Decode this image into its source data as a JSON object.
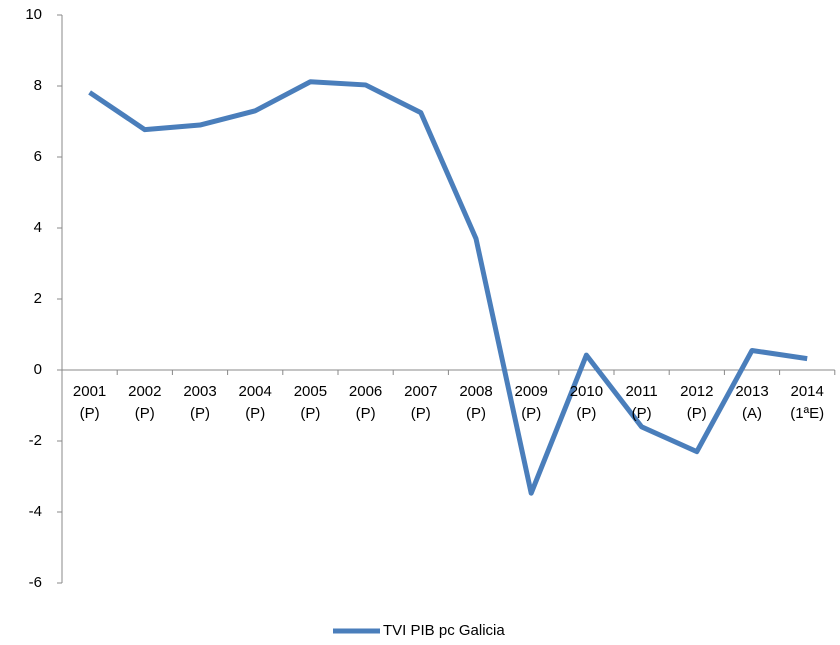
{
  "chart_data": {
    "type": "line",
    "categories": [
      "2001\n(P)",
      "2002\n(P)",
      "2003\n(P)",
      "2004\n(P)",
      "2005\n(P)",
      "2006\n(P)",
      "2007\n(P)",
      "2008\n(P)",
      "2009\n(P)",
      "2010\n(P)",
      "2011\n(P)",
      "2012\n(P)",
      "2013\n(A)",
      "2014\n(1ªE)"
    ],
    "series": [
      {
        "name": "TVI PIB pc Galicia",
        "color": "#4a7ebb",
        "values": [
          7.82,
          6.77,
          6.9,
          7.3,
          8.12,
          8.03,
          7.25,
          3.7,
          -3.47,
          0.42,
          -1.6,
          -2.3,
          0.55,
          0.32
        ]
      }
    ],
    "ylim": [
      -6,
      10
    ],
    "yticks": [
      -6,
      -4,
      -2,
      0,
      2,
      4,
      6,
      8,
      10
    ],
    "grid": false,
    "legend": "bottom"
  }
}
